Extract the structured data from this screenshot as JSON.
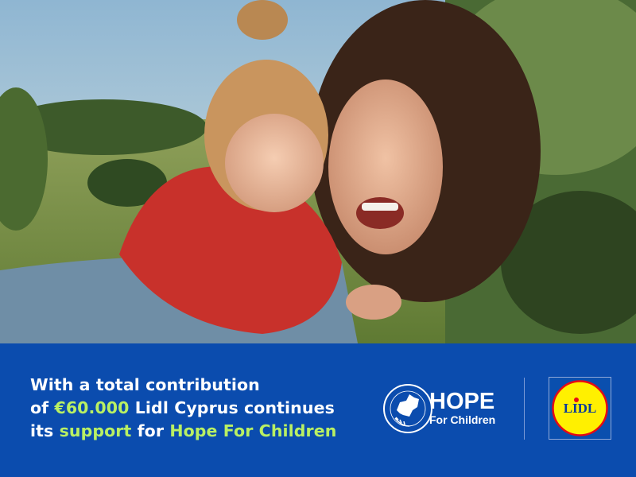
{
  "photo": {
    "description_icon": "mother-and-child-photo"
  },
  "banner": {
    "line1": "With a total contribution",
    "line2_prefix": "of ",
    "line2_amount": "€60.000",
    "line2_suffix": " Lidl Cyprus continues",
    "line3_prefix": "its ",
    "line3_support": "support",
    "line3_mid": " for ",
    "line3_org": "Hope For Children",
    "highlight_color": "#b9f063",
    "background_color": "#0b4cae"
  },
  "hope_logo": {
    "ring_text": "CRC Policy Center",
    "title": "HOPE",
    "subtitle": "For Children"
  },
  "lidl_logo": {
    "text": "LIDL",
    "yellow": "#fff000",
    "red": "#e60a14"
  }
}
